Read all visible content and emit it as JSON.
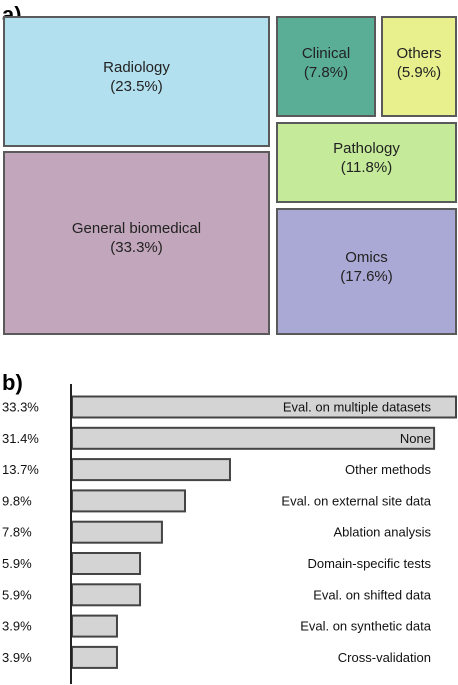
{
  "chart_data": [
    {
      "type": "treemap",
      "panel_label": "a)",
      "items": [
        {
          "name": "Radiology",
          "value": 23.5,
          "value_label": "(23.5%)",
          "color": "#b3e0ef"
        },
        {
          "name": "General biomedical",
          "value": 33.3,
          "value_label": "(33.3%)",
          "color": "#c2a6bb"
        },
        {
          "name": "Clinical",
          "value": 7.8,
          "value_label": "(7.8%)",
          "color": "#5aae95"
        },
        {
          "name": "Others",
          "value": 5.9,
          "value_label": "(5.9%)",
          "color": "#e8f08e"
        },
        {
          "name": "Pathology",
          "value": 11.8,
          "value_label": "(11.8%)",
          "color": "#c5eb9a"
        },
        {
          "name": "Omics",
          "value": 17.6,
          "value_label": "(17.6%)",
          "color": "#aaa8d4"
        }
      ]
    },
    {
      "type": "bar",
      "orientation": "horizontal",
      "panel_label": "b)",
      "bar_color": "#d4d4d4",
      "categories": [
        "Eval. on multiple datasets",
        "None",
        "Other methods",
        "Eval. on external site data",
        "Ablation analysis",
        "Domain-specific tests",
        "Eval. on shifted data",
        "Eval. on synthetic data",
        "Cross-validation"
      ],
      "values": [
        33.3,
        31.4,
        13.7,
        9.8,
        7.8,
        5.9,
        5.9,
        3.9,
        3.9
      ],
      "value_labels": [
        "33.3%",
        "31.4%",
        "13.7%",
        "9.8%",
        "7.8%",
        "5.9%",
        "5.9%",
        "3.9%",
        "3.9%"
      ],
      "xlim": [
        0,
        33.3
      ]
    }
  ]
}
